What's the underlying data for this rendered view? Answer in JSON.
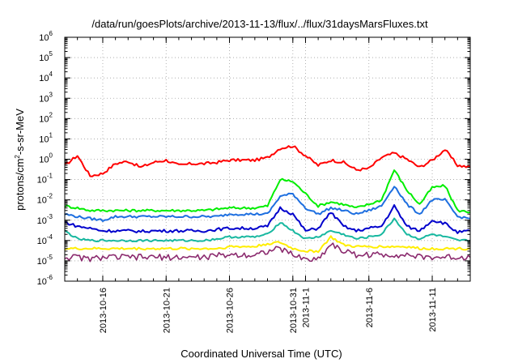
{
  "chart_data": {
    "type": "line",
    "title": "/data/run/goesPlots/archive/2013-11-13/flux/../flux/31daysMarsFluxes.txt",
    "xlabel": "Coordinated Universal Time (UTC)",
    "ylabel_parts": [
      "protons/cm",
      "2",
      "-s-sr-MeV"
    ],
    "y_scale": "log",
    "ylim": [
      1e-06,
      1000000.0
    ],
    "y_ticks": [
      {
        "base": "10",
        "exp": "-6",
        "value": -6
      },
      {
        "base": "10",
        "exp": "-5",
        "value": -5
      },
      {
        "base": "10",
        "exp": "-4",
        "value": -4
      },
      {
        "base": "10",
        "exp": "-3",
        "value": -3
      },
      {
        "base": "10",
        "exp": "-2",
        "value": -2
      },
      {
        "base": "10",
        "exp": "-1",
        "value": -1
      },
      {
        "base": "10",
        "exp": "0",
        "value": 0
      },
      {
        "base": "10",
        "exp": "1",
        "value": 1
      },
      {
        "base": "10",
        "exp": "2",
        "value": 2
      },
      {
        "base": "10",
        "exp": "3",
        "value": 3
      },
      {
        "base": "10",
        "exp": "4",
        "value": 4
      },
      {
        "base": "10",
        "exp": "5",
        "value": 5
      },
      {
        "base": "10",
        "exp": "6",
        "value": 6
      }
    ],
    "xlim": [
      "2013-10-13",
      "2013-11-14"
    ],
    "x_ticks": [
      {
        "date": "2013-10-16",
        "label": "2013-10-16"
      },
      {
        "date": "2013-10-21",
        "label": "2013-10-21"
      },
      {
        "date": "2013-10-26",
        "label": "2013-10-26"
      },
      {
        "date": "2013-10-31",
        "label": "2013-10-31"
      },
      {
        "date": "2013-11-01",
        "label": "2013-11-1"
      },
      {
        "date": "2013-11-06",
        "label": "2013-11-6"
      },
      {
        "date": "2013-11-11",
        "label": "2013-11-11"
      }
    ],
    "grid": true,
    "series": [
      {
        "color": "#ff0000",
        "x": [
          "2013-10-13",
          "2013-10-14",
          "2013-10-15",
          "2013-10-16",
          "2013-10-17",
          "2013-10-18",
          "2013-10-19",
          "2013-10-20",
          "2013-10-21",
          "2013-10-22",
          "2013-10-23",
          "2013-10-24",
          "2013-10-25",
          "2013-10-26",
          "2013-10-27",
          "2013-10-28",
          "2013-10-29",
          "2013-10-30",
          "2013-10-31",
          "2013-11-01",
          "2013-11-02",
          "2013-11-03",
          "2013-11-04",
          "2013-11-05",
          "2013-11-06",
          "2013-11-07",
          "2013-11-08",
          "2013-11-09",
          "2013-11-10",
          "2013-11-11",
          "2013-11-12",
          "2013-11-13",
          "2013-11-14"
        ],
        "y": [
          0.5,
          1.5,
          0.15,
          0.2,
          0.6,
          0.8,
          0.4,
          0.7,
          0.9,
          0.5,
          0.6,
          0.6,
          0.7,
          0.9,
          0.9,
          0.9,
          1.2,
          3.5,
          4.5,
          1.5,
          0.5,
          0.9,
          0.7,
          0.3,
          0.35,
          1.2,
          2.0,
          1.0,
          0.4,
          0.9,
          3.0,
          0.5,
          0.4
        ]
      },
      {
        "color": "#00ee00",
        "x": [
          "2013-10-13",
          "2013-10-14",
          "2013-10-15",
          "2013-10-16",
          "2013-10-17",
          "2013-10-18",
          "2013-10-19",
          "2013-10-20",
          "2013-10-21",
          "2013-10-22",
          "2013-10-23",
          "2013-10-24",
          "2013-10-25",
          "2013-10-26",
          "2013-10-27",
          "2013-10-28",
          "2013-10-29",
          "2013-10-30",
          "2013-10-31",
          "2013-11-01",
          "2013-11-02",
          "2013-11-03",
          "2013-11-04",
          "2013-11-05",
          "2013-11-06",
          "2013-11-07",
          "2013-11-08",
          "2013-11-09",
          "2013-11-10",
          "2013-11-11",
          "2013-11-12",
          "2013-11-13",
          "2013-11-14"
        ],
        "y": [
          0.005,
          0.004,
          0.003,
          0.003,
          0.003,
          0.003,
          0.003,
          0.003,
          0.003,
          0.003,
          0.003,
          0.003,
          0.0035,
          0.004,
          0.004,
          0.004,
          0.005,
          0.1,
          0.08,
          0.02,
          0.005,
          0.008,
          0.006,
          0.004,
          0.006,
          0.01,
          0.3,
          0.03,
          0.006,
          0.04,
          0.05,
          0.003,
          0.0025
        ]
      },
      {
        "color": "#1e6fe0",
        "x": [
          "2013-10-13",
          "2013-10-14",
          "2013-10-15",
          "2013-10-16",
          "2013-10-17",
          "2013-10-18",
          "2013-10-19",
          "2013-10-20",
          "2013-10-21",
          "2013-10-22",
          "2013-10-23",
          "2013-10-24",
          "2013-10-25",
          "2013-10-26",
          "2013-10-27",
          "2013-10-28",
          "2013-10-29",
          "2013-10-30",
          "2013-10-31",
          "2013-11-01",
          "2013-11-02",
          "2013-11-03",
          "2013-11-04",
          "2013-11-05",
          "2013-11-06",
          "2013-11-07",
          "2013-11-08",
          "2013-11-09",
          "2013-11-10",
          "2013-11-11",
          "2013-11-12",
          "2013-11-13",
          "2013-11-14"
        ],
        "y": [
          0.002,
          0.0015,
          0.0012,
          0.001,
          0.0015,
          0.0015,
          0.0015,
          0.0015,
          0.0015,
          0.0015,
          0.0015,
          0.0015,
          0.0015,
          0.002,
          0.002,
          0.002,
          0.002,
          0.015,
          0.02,
          0.004,
          0.002,
          0.004,
          0.003,
          0.002,
          0.003,
          0.005,
          0.05,
          0.006,
          0.002,
          0.01,
          0.01,
          0.0015,
          0.0012
        ]
      },
      {
        "color": "#0000cc",
        "x": [
          "2013-10-13",
          "2013-10-14",
          "2013-10-15",
          "2013-10-16",
          "2013-10-17",
          "2013-10-18",
          "2013-10-19",
          "2013-10-20",
          "2013-10-21",
          "2013-10-22",
          "2013-10-23",
          "2013-10-24",
          "2013-10-25",
          "2013-10-26",
          "2013-10-27",
          "2013-10-28",
          "2013-10-29",
          "2013-10-30",
          "2013-10-31",
          "2013-11-01",
          "2013-11-02",
          "2013-11-03",
          "2013-11-04",
          "2013-11-05",
          "2013-11-06",
          "2013-11-07",
          "2013-11-08",
          "2013-11-09",
          "2013-11-10",
          "2013-11-11",
          "2013-11-12",
          "2013-11-13",
          "2013-11-14"
        ],
        "y": [
          0.0008,
          0.0005,
          0.0004,
          0.0003,
          0.0003,
          0.0003,
          0.00028,
          0.0003,
          0.0003,
          0.0003,
          0.0003,
          0.0003,
          0.00035,
          0.0004,
          0.0004,
          0.0004,
          0.0005,
          0.004,
          0.002,
          0.0003,
          0.0004,
          0.0025,
          0.0005,
          0.0003,
          0.0004,
          0.0005,
          0.005,
          0.0005,
          0.0003,
          0.001,
          0.0007,
          0.00025,
          0.0003
        ]
      },
      {
        "color": "#18b8a0",
        "x": [
          "2013-10-13",
          "2013-10-14",
          "2013-10-15",
          "2013-10-16",
          "2013-10-17",
          "2013-10-18",
          "2013-10-19",
          "2013-10-20",
          "2013-10-21",
          "2013-10-22",
          "2013-10-23",
          "2013-10-24",
          "2013-10-25",
          "2013-10-26",
          "2013-10-27",
          "2013-10-28",
          "2013-10-29",
          "2013-10-30",
          "2013-10-31",
          "2013-11-01",
          "2013-11-02",
          "2013-11-03",
          "2013-11-04",
          "2013-11-05",
          "2013-11-06",
          "2013-11-07",
          "2013-11-08",
          "2013-11-09",
          "2013-11-10",
          "2013-11-11",
          "2013-11-12",
          "2013-11-13",
          "2013-11-14"
        ],
        "y": [
          0.0003,
          0.00012,
          0.0001,
          0.0001,
          0.0001,
          0.0001,
          0.0001,
          0.0001,
          0.0001,
          0.0001,
          0.0001,
          0.0001,
          0.00012,
          0.00015,
          0.00015,
          0.00015,
          0.0002,
          0.0008,
          0.0003,
          0.00012,
          0.00015,
          0.0003,
          0.0002,
          0.00012,
          0.00015,
          0.0002,
          0.0012,
          0.0002,
          0.00012,
          0.0002,
          0.00015,
          0.0001,
          0.0001
        ]
      },
      {
        "color": "#ffee00",
        "x": [
          "2013-10-13",
          "2013-10-14",
          "2013-10-15",
          "2013-10-16",
          "2013-10-17",
          "2013-10-18",
          "2013-10-19",
          "2013-10-20",
          "2013-10-21",
          "2013-10-22",
          "2013-10-23",
          "2013-10-24",
          "2013-10-25",
          "2013-10-26",
          "2013-10-27",
          "2013-10-28",
          "2013-10-29",
          "2013-10-30",
          "2013-10-31",
          "2013-11-01",
          "2013-11-02",
          "2013-11-03",
          "2013-11-04",
          "2013-11-05",
          "2013-11-06",
          "2013-11-07",
          "2013-11-08",
          "2013-11-09",
          "2013-11-10",
          "2013-11-11",
          "2013-11-12",
          "2013-11-13",
          "2013-11-14"
        ],
        "y": [
          4e-05,
          4e-05,
          4e-05,
          4e-05,
          4e-05,
          4e-05,
          4e-05,
          4e-05,
          4e-05,
          4e-05,
          4e-05,
          4e-05,
          4e-05,
          5e-05,
          5e-05,
          5e-05,
          7e-05,
          8e-05,
          4e-05,
          3e-05,
          3e-05,
          0.00015,
          6e-05,
          5e-05,
          5e-05,
          5e-05,
          5e-05,
          5e-05,
          4e-05,
          4e-05,
          4e-05,
          4e-05,
          4e-05
        ]
      },
      {
        "color": "#8b2a6e",
        "x": [
          "2013-10-13",
          "2013-10-14",
          "2013-10-15",
          "2013-10-16",
          "2013-10-17",
          "2013-10-18",
          "2013-10-19",
          "2013-10-20",
          "2013-10-21",
          "2013-10-22",
          "2013-10-23",
          "2013-10-24",
          "2013-10-25",
          "2013-10-26",
          "2013-10-27",
          "2013-10-28",
          "2013-10-29",
          "2013-10-30",
          "2013-10-31",
          "2013-11-01",
          "2013-11-02",
          "2013-11-03",
          "2013-11-04",
          "2013-11-05",
          "2013-11-06",
          "2013-11-07",
          "2013-11-08",
          "2013-11-09",
          "2013-11-10",
          "2013-11-11",
          "2013-11-12",
          "2013-11-13",
          "2013-11-14"
        ],
        "y": [
          1.5e-05,
          1.5e-05,
          1.2e-05,
          1.5e-05,
          1.5e-05,
          1.5e-05,
          1.5e-05,
          1.5e-05,
          1.5e-05,
          1.5e-05,
          1.5e-05,
          1.5e-05,
          1.8e-05,
          2e-05,
          2e-05,
          2e-05,
          3e-05,
          4e-05,
          2e-05,
          1.2e-05,
          1.2e-05,
          7e-05,
          3e-05,
          2e-05,
          2e-05,
          2e-05,
          2e-05,
          2e-05,
          1.5e-05,
          1.5e-05,
          1.5e-05,
          1.5e-05,
          1.5e-05
        ]
      }
    ]
  }
}
